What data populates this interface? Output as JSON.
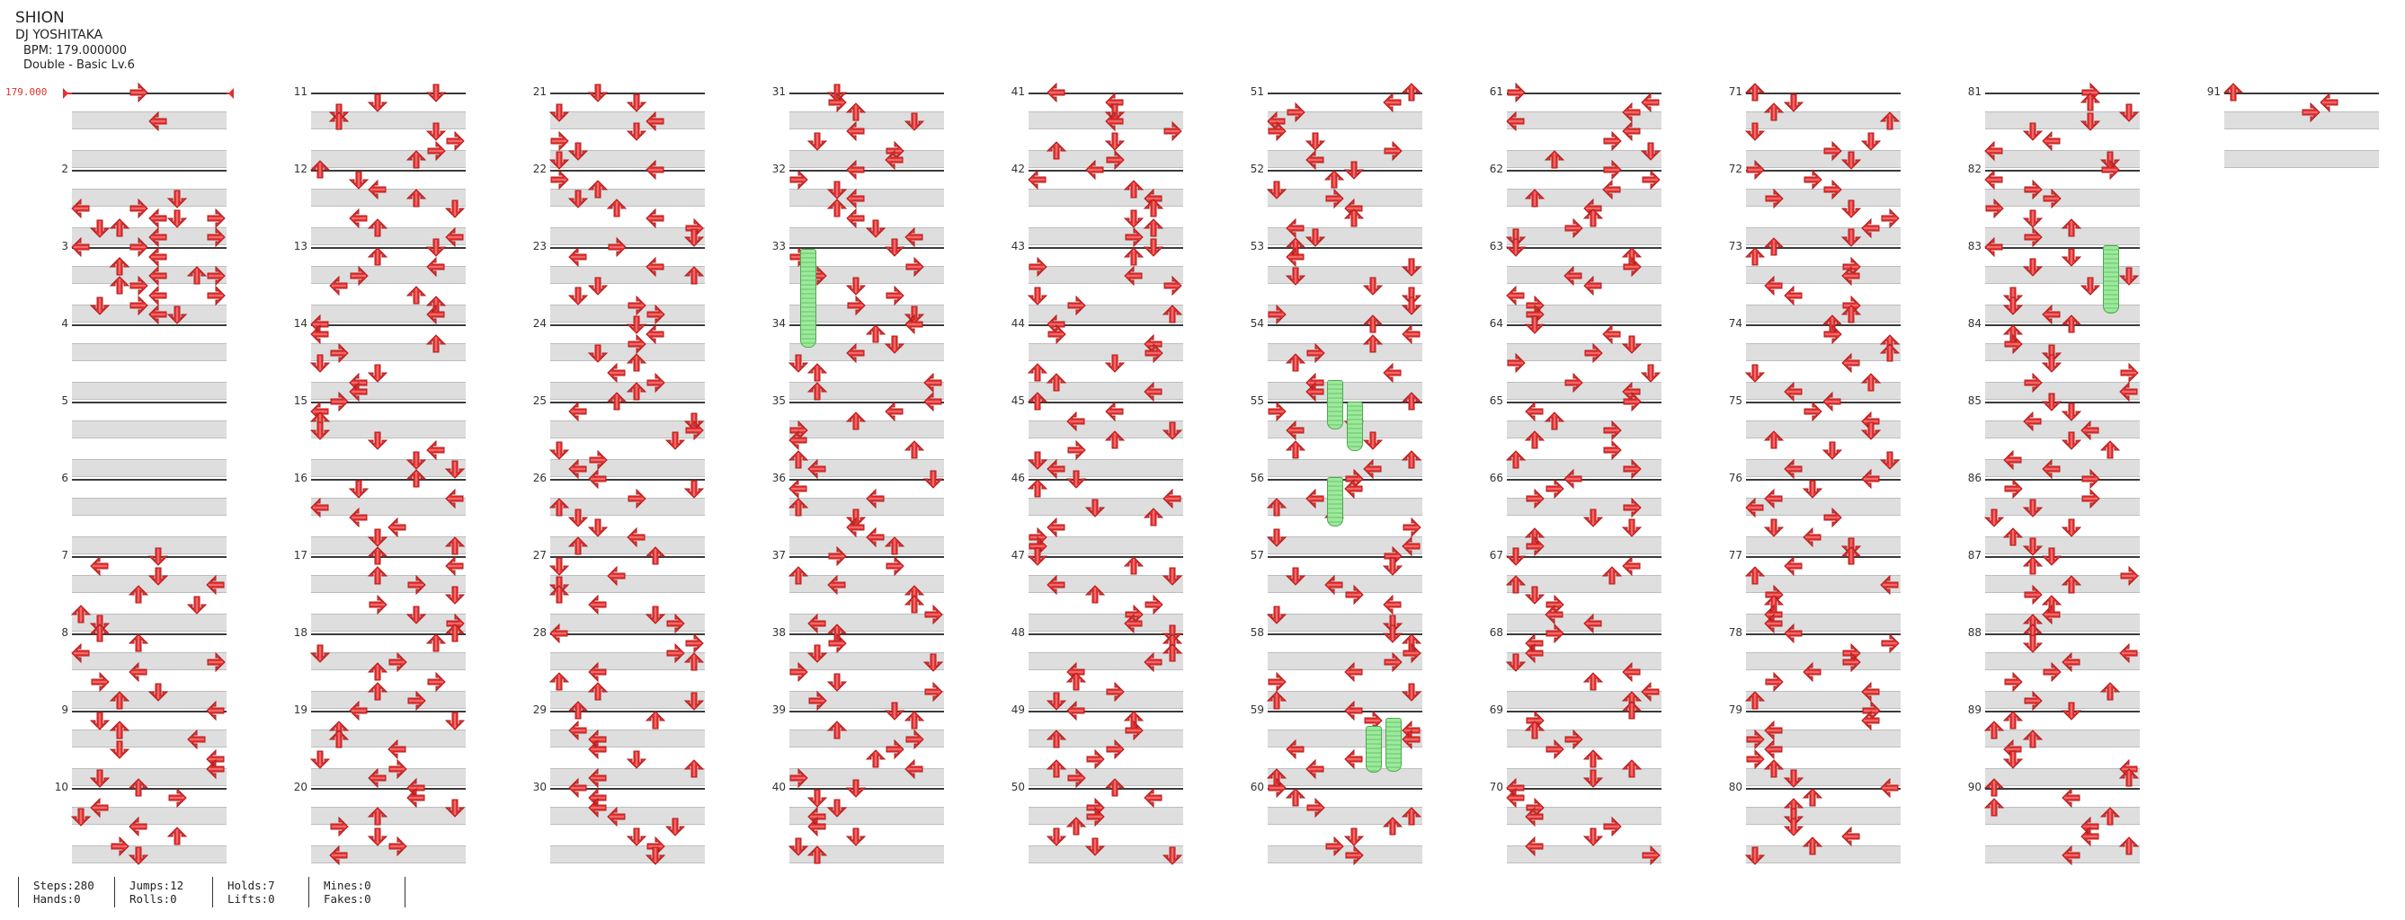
{
  "song": {
    "title": "SHION",
    "artist": "DJ YOSHITAKA",
    "bpm": "BPM: 179.000000",
    "chart": "Double - Basic  Lv.6"
  },
  "bpm_marker": "179.000",
  "colors": {
    "arrow": "#e83535",
    "arrow_dark": "#b01e1e",
    "hold": "#8ee08e",
    "stripe": "#dedede"
  },
  "measure_numbers": [
    "2",
    "3",
    "4",
    "5",
    "6",
    "7",
    "8",
    "9",
    "10",
    "11",
    "12",
    "13",
    "14",
    "15",
    "16",
    "17",
    "18",
    "19",
    "20",
    "21",
    "22",
    "23",
    "24",
    "25",
    "26",
    "27",
    "28",
    "29",
    "30",
    "31",
    "32",
    "33",
    "34",
    "35",
    "36",
    "37",
    "38",
    "39",
    "40",
    "41",
    "42",
    "43",
    "44",
    "45",
    "46",
    "47",
    "48",
    "49",
    "50",
    "51",
    "52",
    "53",
    "54",
    "55",
    "56",
    "57",
    "58",
    "59",
    "60",
    "61",
    "62",
    "63",
    "64",
    "65",
    "66",
    "67",
    "68",
    "69",
    "70",
    "71",
    "72",
    "73",
    "74",
    "75",
    "76",
    "77",
    "78",
    "79",
    "80",
    "81",
    "82",
    "83",
    "84",
    "85",
    "86",
    "87",
    "88",
    "89",
    "90",
    "91"
  ],
  "stats": {
    "steps": "Steps:280",
    "hands": "Hands:0",
    "jumps": "Jumps:12",
    "rolls": "Rolls:0",
    "holds": "Holds:7",
    "lifts": "Lifts:0",
    "mines": "Mines:0",
    "fakes": "Fakes:0"
  },
  "chart_data": {
    "type": "table",
    "lanes": [
      "P1-left",
      "P1-down",
      "P1-up",
      "P1-right",
      "P2-left",
      "P2-down",
      "P2-up",
      "P2-right"
    ],
    "rows_per_measure": 8,
    "notes": [
      [
        1,
        0,
        "right"
      ],
      [
        1,
        3,
        "left"
      ],
      [
        2,
        6,
        "up"
      ],
      [
        2,
        11,
        "down"
      ],
      [
        2,
        20,
        "right"
      ],
      [
        2,
        29,
        "left"
      ],
      [
        2,
        29,
        "down"
      ],
      [
        2,
        30,
        "down"
      ],
      [
        2,
        38,
        "up"
      ],
      [
        2,
        39,
        "right"
      ],
      [
        2,
        44,
        "left"
      ],
      [
        2,
        45,
        "right"
      ],
      [
        2,
        47,
        "left"
      ],
      [
        3,
        0,
        "left"
      ],
      [
        3,
        2,
        "up"
      ],
      [
        3,
        3,
        "right"
      ],
      [
        3,
        4,
        "right"
      ],
      [
        3,
        6,
        "down"
      ],
      [
        3,
        7,
        "down"
      ],
      [
        3,
        9,
        "left"
      ],
      [
        3,
        10,
        "up"
      ],
      [
        3,
        15,
        "left"
      ],
      [
        3,
        20,
        "up"
      ],
      [
        3,
        25,
        "left"
      ],
      [
        3,
        29,
        "right"
      ],
      [
        3,
        31,
        "left"
      ],
      [
        3,
        34,
        "up"
      ],
      [
        3,
        35,
        "left"
      ],
      [
        3,
        37,
        "left"
      ],
      [
        3,
        40,
        "right"
      ],
      [
        3,
        42,
        "up"
      ],
      [
        3,
        43,
        "up"
      ],
      [
        3,
        45,
        "right"
      ],
      [
        3,
        46,
        "right"
      ],
      [
        3,
        47,
        "down"
      ]
    ]
  }
}
